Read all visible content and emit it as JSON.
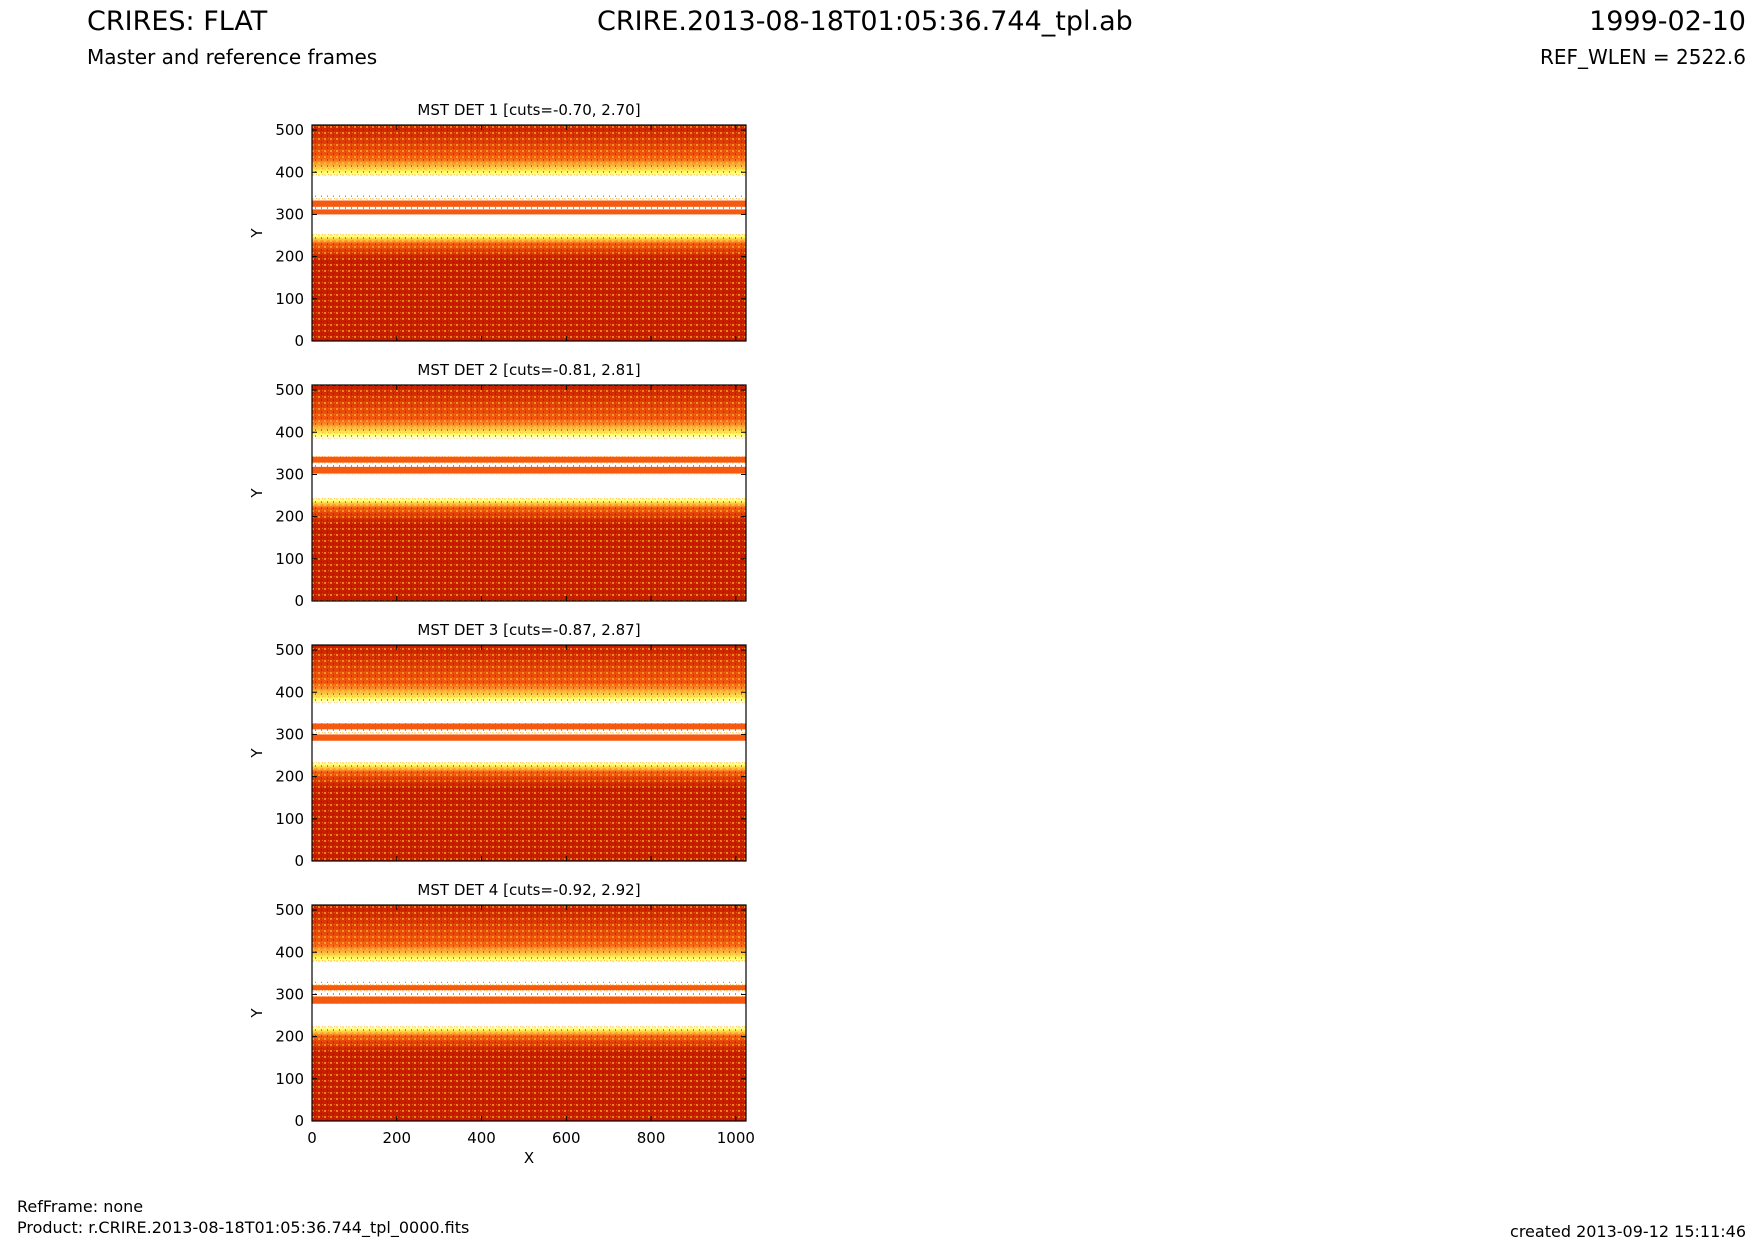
{
  "header": {
    "title_left": "CRIRES: FLAT",
    "title_center": "CRIRE.2013-08-18T01:05:36.744_tpl.ab",
    "title_right": "1999-02-10",
    "subtitle_left": "Master and reference frames",
    "subtitle_right": "REF_WLEN = 2522.6"
  },
  "footer": {
    "ref_frame": "RefFrame: none",
    "product": "Product: r.CRIRE.2013-08-18T01:05:36.744_tpl_0000.fits",
    "created": "created 2013-09-12 15:11:46"
  },
  "colors": {
    "low": "#c81e00",
    "mid": "#f55a10",
    "high": "#ffff60",
    "sat": "#ffffff"
  },
  "chart_data": [
    {
      "type": "heatmap",
      "title": "MST DET 1 [cuts=-0.70, 2.70]",
      "ylabel": "Y",
      "xlim": [
        0,
        1024
      ],
      "ylim": [
        0,
        512
      ],
      "yticks": [
        0,
        100,
        200,
        300,
        400,
        500
      ],
      "white_bands": [
        [
          255,
          305
        ],
        [
          345,
          390
        ]
      ],
      "orange_stripes": [
        [
          318,
          333
        ],
        [
          300,
          312
        ]
      ]
    },
    {
      "type": "heatmap",
      "title": "MST DET 2 [cuts=-0.81, 2.81]",
      "ylabel": "Y",
      "xlim": [
        0,
        1024
      ],
      "ylim": [
        0,
        512
      ],
      "yticks": [
        0,
        100,
        200,
        300,
        400,
        500
      ],
      "white_bands": [
        [
          245,
          300
        ],
        [
          345,
          385
        ]
      ],
      "orange_stripes": [
        [
          328,
          342
        ],
        [
          302,
          318
        ]
      ]
    },
    {
      "type": "heatmap",
      "title": "MST DET 3 [cuts=-0.87, 2.87]",
      "ylabel": "Y",
      "xlim": [
        0,
        1024
      ],
      "ylim": [
        0,
        512
      ],
      "yticks": [
        0,
        100,
        200,
        300,
        400,
        500
      ],
      "white_bands": [
        [
          235,
          290
        ],
        [
          330,
          375
        ]
      ],
      "orange_stripes": [
        [
          312,
          326
        ],
        [
          285,
          300
        ]
      ]
    },
    {
      "type": "heatmap",
      "title": "MST DET 4 [cuts=-0.92, 2.92]",
      "ylabel": "Y",
      "xlabel": "X",
      "xlim": [
        0,
        1024
      ],
      "ylim": [
        0,
        512
      ],
      "yticks": [
        0,
        100,
        200,
        300,
        400,
        500
      ],
      "xticks": [
        0,
        200,
        400,
        600,
        800,
        1000
      ],
      "white_bands": [
        [
          225,
          275
        ],
        [
          330,
          375
        ]
      ],
      "orange_stripes": [
        [
          310,
          322
        ],
        [
          278,
          295
        ]
      ]
    }
  ]
}
